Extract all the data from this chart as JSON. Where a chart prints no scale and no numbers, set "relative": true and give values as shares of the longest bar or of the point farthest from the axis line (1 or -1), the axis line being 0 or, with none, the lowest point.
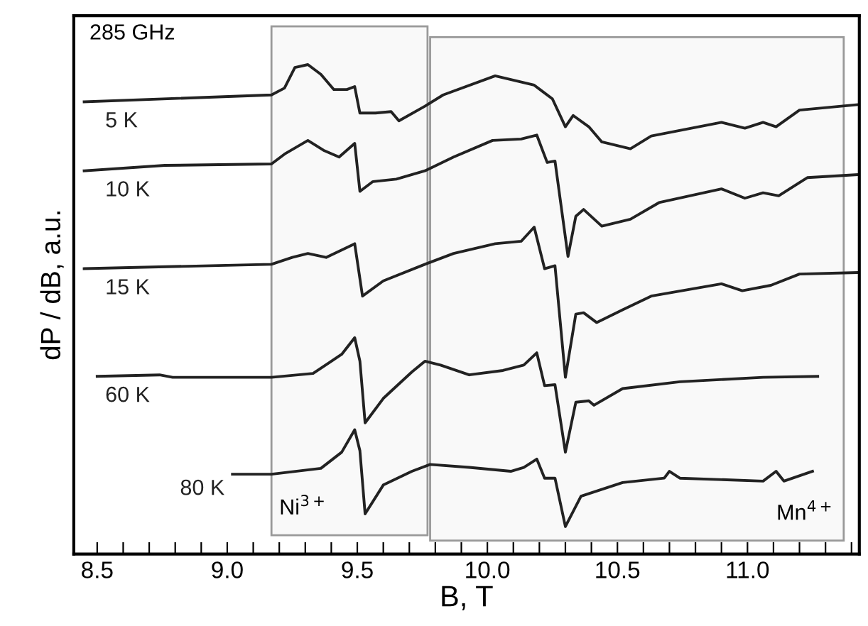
{
  "chart_data": {
    "type": "line",
    "relative": true,
    "xlabel": "B, T",
    "ylabel": "dP / dB, a.u.",
    "annotations": [
      "285 GHz"
    ],
    "tick_labels": "x",
    "grid": false,
    "marker": "none",
    "line_style": "solid",
    "xlim": [
      8.41,
      11.43
    ],
    "xticks": [
      8.5,
      {
        "value": 8.6,
        "label": null
      },
      {
        "value": 8.7,
        "label": null
      },
      {
        "value": 8.8,
        "label": null
      },
      {
        "value": 8.9,
        "label": null
      },
      {
        "value": 9.0,
        "label": "9.0"
      },
      {
        "value": 9.1,
        "label": null
      },
      {
        "value": 9.2,
        "label": null
      },
      {
        "value": 9.3,
        "label": null
      },
      {
        "value": 9.4,
        "label": null
      },
      9.5,
      {
        "value": 9.6,
        "label": null
      },
      {
        "value": 9.7,
        "label": null
      },
      {
        "value": 9.8,
        "label": null
      },
      {
        "value": 9.9,
        "label": null
      },
      {
        "value": 10.0,
        "label": "10.0"
      },
      {
        "value": 10.1,
        "label": null
      },
      {
        "value": 10.2,
        "label": null
      },
      {
        "value": 10.3,
        "label": null
      },
      {
        "value": 10.4,
        "label": null
      },
      10.5,
      {
        "value": 10.6,
        "label": null
      },
      {
        "value": 10.7,
        "label": null
      },
      {
        "value": 10.8,
        "label": null
      },
      {
        "value": 10.9,
        "label": null
      },
      {
        "value": 11.0,
        "label": "11.0"
      },
      {
        "value": 11.1,
        "label": null
      },
      {
        "value": 11.2,
        "label": null
      },
      {
        "value": 11.3,
        "label": null
      },
      {
        "value": 11.4,
        "label": null
      }
    ],
    "bands": [
      {
        "axis": "x",
        "from": 9.17,
        "to": 9.77,
        "label": "Ni$^{3+}$",
        "color": "#999999"
      },
      {
        "axis": "x",
        "from": 9.78,
        "to": 11.37,
        "label": "Mn$^{4+}$",
        "color": "#999999"
      }
    ],
    "series": [
      {
        "name": "5 K",
        "color": "#222222",
        "x": [
          8.45,
          9.17,
          9.22,
          9.26,
          9.31,
          9.36,
          9.41,
          9.46,
          9.49,
          9.51,
          9.57,
          9.63,
          9.66,
          9.76,
          9.83,
          10.03,
          10.18,
          10.25,
          10.3,
          10.33,
          10.39,
          10.44,
          10.55,
          10.63,
          10.9,
          10.99,
          11.06,
          11.11,
          11.2,
          11.42
        ],
        "values": [
          0.924,
          0.938,
          0.952,
          0.994,
          1.0,
          0.98,
          0.949,
          0.949,
          0.955,
          0.901,
          0.901,
          0.904,
          0.885,
          0.915,
          0.938,
          0.977,
          0.958,
          0.93,
          0.873,
          0.896,
          0.873,
          0.842,
          0.828,
          0.854,
          0.882,
          0.87,
          0.882,
          0.873,
          0.907,
          0.918
        ]
      },
      {
        "name": "10 K",
        "color": "#222222",
        "x": [
          8.45,
          8.76,
          9.17,
          9.22,
          9.31,
          9.37,
          9.43,
          9.49,
          9.51,
          9.56,
          9.65,
          9.76,
          9.87,
          10.02,
          10.13,
          10.19,
          10.23,
          10.26,
          10.31,
          10.34,
          10.37,
          10.44,
          10.55,
          10.66,
          10.9,
          10.99,
          11.06,
          11.12,
          11.23,
          11.42
        ],
        "values": [
          0.783,
          0.794,
          0.797,
          0.817,
          0.845,
          0.825,
          0.811,
          0.839,
          0.741,
          0.761,
          0.766,
          0.783,
          0.811,
          0.845,
          0.848,
          0.856,
          0.8,
          0.803,
          0.608,
          0.69,
          0.704,
          0.67,
          0.684,
          0.718,
          0.746,
          0.727,
          0.738,
          0.732,
          0.769,
          0.775
        ]
      },
      {
        "name": "15 K",
        "color": "#222222",
        "x": [
          8.45,
          9.17,
          9.25,
          9.31,
          9.38,
          9.49,
          9.52,
          9.6,
          9.76,
          9.87,
          10.03,
          10.13,
          10.18,
          10.22,
          10.26,
          10.3,
          10.34,
          10.37,
          10.42,
          10.52,
          10.63,
          10.9,
          10.98,
          11.09,
          11.2,
          11.42
        ],
        "values": [
          0.583,
          0.592,
          0.606,
          0.614,
          0.606,
          0.634,
          0.527,
          0.558,
          0.592,
          0.614,
          0.634,
          0.639,
          0.668,
          0.583,
          0.589,
          0.361,
          0.49,
          0.493,
          0.473,
          0.499,
          0.527,
          0.552,
          0.538,
          0.549,
          0.572,
          0.575
        ]
      },
      {
        "name": "60 K",
        "color": "#222222",
        "x": [
          8.5,
          8.74,
          8.79,
          9.17,
          9.33,
          9.44,
          9.49,
          9.51,
          9.53,
          9.6,
          9.71,
          9.76,
          9.82,
          9.93,
          10.06,
          10.14,
          10.19,
          10.22,
          10.26,
          10.3,
          10.34,
          10.39,
          10.41,
          10.52,
          10.74,
          11.06,
          11.27
        ],
        "values": [
          0.363,
          0.366,
          0.361,
          0.361,
          0.369,
          0.408,
          0.442,
          0.394,
          0.268,
          0.318,
          0.372,
          0.394,
          0.386,
          0.366,
          0.375,
          0.386,
          0.411,
          0.344,
          0.346,
          0.208,
          0.31,
          0.313,
          0.304,
          0.338,
          0.352,
          0.361,
          0.363
        ]
      },
      {
        "name": "80 K",
        "color": "#222222",
        "x": [
          9.02,
          9.17,
          9.36,
          9.44,
          9.49,
          9.51,
          9.53,
          9.6,
          9.71,
          9.78,
          9.93,
          10.09,
          10.14,
          10.19,
          10.22,
          10.26,
          10.3,
          10.36,
          10.52,
          10.68,
          10.7,
          10.74,
          11.06,
          11.11,
          11.14,
          11.25
        ],
        "values": [
          0.163,
          0.163,
          0.175,
          0.208,
          0.254,
          0.211,
          0.082,
          0.141,
          0.169,
          0.183,
          0.177,
          0.169,
          0.177,
          0.194,
          0.155,
          0.155,
          0.056,
          0.118,
          0.146,
          0.155,
          0.169,
          0.155,
          0.149,
          0.169,
          0.149,
          0.169
        ]
      }
    ]
  }
}
